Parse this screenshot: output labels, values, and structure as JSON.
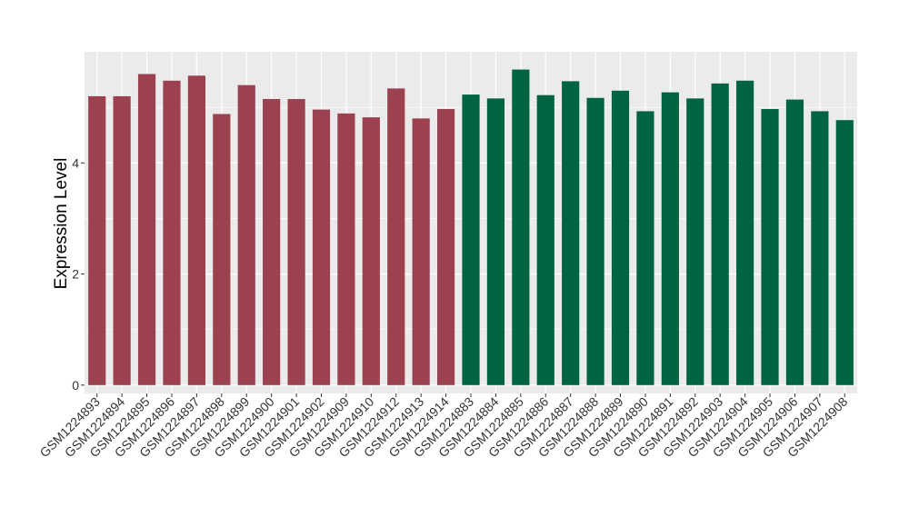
{
  "chart_data": {
    "type": "bar",
    "ylabel": "Expression Level",
    "xlabel": "",
    "ylim": [
      -0.15,
      6.0
    ],
    "yticks": [
      0,
      2,
      4
    ],
    "grid": true,
    "legend": "none",
    "colors": {
      "panel_bg": "#EBEBEB",
      "grid_major": "#FFFFFF",
      "group_1": "#9B4150",
      "group_2": "#006443"
    },
    "categories": [
      "GSM1224893",
      "GSM1224894",
      "GSM1224895",
      "GSM1224896",
      "GSM1224897",
      "GSM1224898",
      "GSM1224899",
      "GSM1224900",
      "GSM1224901",
      "GSM1224902",
      "GSM1224909",
      "GSM1224910",
      "GSM1224912",
      "GSM1224913",
      "GSM1224914",
      "GSM1224883",
      "GSM1224884",
      "GSM1224885",
      "GSM1224886",
      "GSM1224887",
      "GSM1224888",
      "GSM1224889",
      "GSM1224890",
      "GSM1224891",
      "GSM1224892",
      "GSM1224903",
      "GSM1224904",
      "GSM1224905",
      "GSM1224906",
      "GSM1224907",
      "GSM1224908"
    ],
    "values": [
      5.2,
      5.2,
      5.6,
      5.48,
      5.57,
      4.88,
      5.4,
      5.15,
      5.15,
      4.96,
      4.89,
      4.82,
      5.34,
      4.8,
      4.97,
      5.23,
      5.16,
      5.68,
      5.22,
      5.47,
      5.17,
      5.3,
      4.93,
      5.27,
      5.16,
      5.43,
      5.48,
      4.97,
      5.14,
      4.93,
      4.77
    ],
    "groups": [
      1,
      1,
      1,
      1,
      1,
      1,
      1,
      1,
      1,
      1,
      1,
      1,
      1,
      1,
      1,
      2,
      2,
      2,
      2,
      2,
      2,
      2,
      2,
      2,
      2,
      2,
      2,
      2,
      2,
      2,
      2
    ]
  }
}
